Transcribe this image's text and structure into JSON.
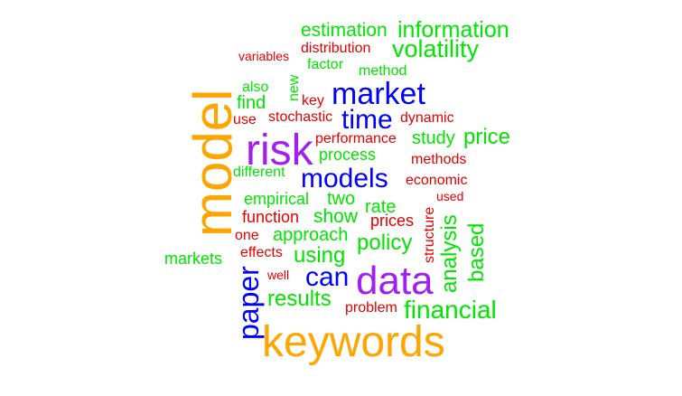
{
  "palette": {
    "orange": "#FFA500",
    "purple": "#A020F0",
    "blue": "#0000FF",
    "green": "#00E600",
    "red": "#E60000"
  },
  "words": [
    {
      "text": "estimation",
      "color": "green",
      "orientation": "horizontal"
    },
    {
      "text": "information",
      "color": "green",
      "orientation": "horizontal"
    },
    {
      "text": "distribution",
      "color": "red",
      "orientation": "horizontal"
    },
    {
      "text": "volatility",
      "color": "green",
      "orientation": "horizontal"
    },
    {
      "text": "variables",
      "color": "red",
      "orientation": "horizontal"
    },
    {
      "text": "factor",
      "color": "green",
      "orientation": "horizontal"
    },
    {
      "text": "method",
      "color": "green",
      "orientation": "horizontal"
    },
    {
      "text": "new",
      "color": "green",
      "orientation": "vertical"
    },
    {
      "text": "also",
      "color": "green",
      "orientation": "horizontal"
    },
    {
      "text": "market",
      "color": "blue",
      "orientation": "horizontal"
    },
    {
      "text": "key",
      "color": "red",
      "orientation": "horizontal"
    },
    {
      "text": "find",
      "color": "green",
      "orientation": "horizontal"
    },
    {
      "text": "model",
      "color": "orange",
      "orientation": "vertical"
    },
    {
      "text": "use",
      "color": "red",
      "orientation": "horizontal"
    },
    {
      "text": "stochastic",
      "color": "red",
      "orientation": "horizontal"
    },
    {
      "text": "time",
      "color": "blue",
      "orientation": "horizontal"
    },
    {
      "text": "dynamic",
      "color": "red",
      "orientation": "horizontal"
    },
    {
      "text": "risk",
      "color": "purple",
      "orientation": "horizontal"
    },
    {
      "text": "performance",
      "color": "red",
      "orientation": "horizontal"
    },
    {
      "text": "study",
      "color": "green",
      "orientation": "horizontal"
    },
    {
      "text": "price",
      "color": "green",
      "orientation": "horizontal"
    },
    {
      "text": "process",
      "color": "green",
      "orientation": "horizontal"
    },
    {
      "text": "methods",
      "color": "red",
      "orientation": "horizontal"
    },
    {
      "text": "different",
      "color": "green",
      "orientation": "horizontal"
    },
    {
      "text": "models",
      "color": "blue",
      "orientation": "horizontal"
    },
    {
      "text": "economic",
      "color": "red",
      "orientation": "horizontal"
    },
    {
      "text": "used",
      "color": "red",
      "orientation": "horizontal"
    },
    {
      "text": "empirical",
      "color": "green",
      "orientation": "horizontal"
    },
    {
      "text": "two",
      "color": "green",
      "orientation": "horizontal"
    },
    {
      "text": "rate",
      "color": "green",
      "orientation": "horizontal"
    },
    {
      "text": "structure",
      "color": "red",
      "orientation": "vertical"
    },
    {
      "text": "analysis",
      "color": "green",
      "orientation": "vertical"
    },
    {
      "text": "based",
      "color": "green",
      "orientation": "vertical"
    },
    {
      "text": "function",
      "color": "red",
      "orientation": "horizontal"
    },
    {
      "text": "show",
      "color": "green",
      "orientation": "horizontal"
    },
    {
      "text": "prices",
      "color": "red",
      "orientation": "horizontal"
    },
    {
      "text": "one",
      "color": "red",
      "orientation": "horizontal"
    },
    {
      "text": "approach",
      "color": "green",
      "orientation": "horizontal"
    },
    {
      "text": "policy",
      "color": "green",
      "orientation": "horizontal"
    },
    {
      "text": "effects",
      "color": "red",
      "orientation": "horizontal"
    },
    {
      "text": "markets",
      "color": "green",
      "orientation": "horizontal"
    },
    {
      "text": "using",
      "color": "green",
      "orientation": "horizontal"
    },
    {
      "text": "paper",
      "color": "blue",
      "orientation": "vertical"
    },
    {
      "text": "well",
      "color": "red",
      "orientation": "horizontal"
    },
    {
      "text": "can",
      "color": "blue",
      "orientation": "horizontal"
    },
    {
      "text": "data",
      "color": "purple",
      "orientation": "horizontal"
    },
    {
      "text": "results",
      "color": "green",
      "orientation": "horizontal"
    },
    {
      "text": "financial",
      "color": "green",
      "orientation": "horizontal"
    },
    {
      "text": "problem",
      "color": "red",
      "orientation": "horizontal"
    },
    {
      "text": "keywords",
      "color": "orange",
      "orientation": "horizontal"
    }
  ]
}
